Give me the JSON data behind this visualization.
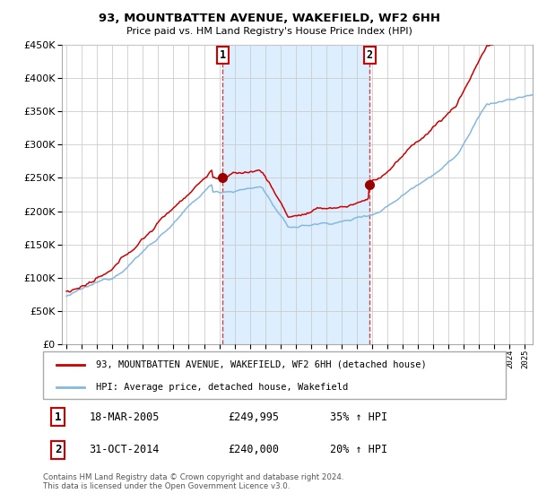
{
  "title": "93, MOUNTBATTEN AVENUE, WAKEFIELD, WF2 6HH",
  "subtitle": "Price paid vs. HM Land Registry's House Price Index (HPI)",
  "sale1_date": "18-MAR-2005",
  "sale1_price": 249995,
  "sale1_x": 2005.21,
  "sale2_date": "31-OCT-2014",
  "sale2_price": 240000,
  "sale2_x": 2014.83,
  "legend1": "93, MOUNTBATTEN AVENUE, WAKEFIELD, WF2 6HH (detached house)",
  "legend2": "HPI: Average price, detached house, Wakefield",
  "footer": "Contains HM Land Registry data © Crown copyright and database right 2024.\nThis data is licensed under the Open Government Licence v3.0.",
  "hpi_color": "#85b8e0",
  "price_color": "#cc0000",
  "marker_color": "#990000",
  "shade_color": "#ddeeff",
  "grid_color": "#cccccc",
  "ylim_max": 450000,
  "xlim_start": 1994.7,
  "xlim_end": 2025.5
}
